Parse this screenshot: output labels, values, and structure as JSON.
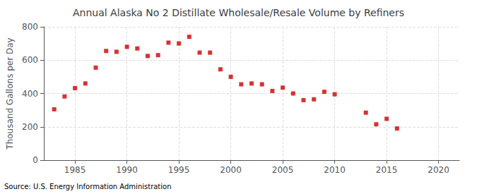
{
  "chart_data": {
    "type": "scatter",
    "title": "Annual Alaska No 2 Distillate Wholesale/Resale Volume by Refiners",
    "ylabel": "Thousand Gallons per Day",
    "annotation": "Source: U.S. Energy Information Administration",
    "x": [
      1983,
      1984,
      1985,
      1986,
      1987,
      1988,
      1989,
      1990,
      1991,
      1992,
      1993,
      1994,
      1995,
      1996,
      1997,
      1998,
      1999,
      2000,
      2001,
      2002,
      2003,
      2004,
      2005,
      2006,
      2007,
      2008,
      2009,
      2010,
      2013,
      2014,
      2015,
      2016
    ],
    "values": [
      305,
      382,
      432,
      460,
      555,
      655,
      650,
      680,
      670,
      625,
      630,
      705,
      700,
      740,
      645,
      645,
      545,
      500,
      455,
      460,
      455,
      415,
      435,
      400,
      360,
      365,
      410,
      395,
      285,
      215,
      248,
      190
    ],
    "color": "#cc0000",
    "marker": "square",
    "xlim": [
      1982,
      2022
    ],
    "xticks": [
      1985,
      1990,
      1995,
      2000,
      2005,
      2010,
      2015,
      2020
    ],
    "ylim": [
      0,
      800
    ],
    "yticks": [
      0,
      200,
      400,
      600,
      800
    ],
    "grid": true
  }
}
